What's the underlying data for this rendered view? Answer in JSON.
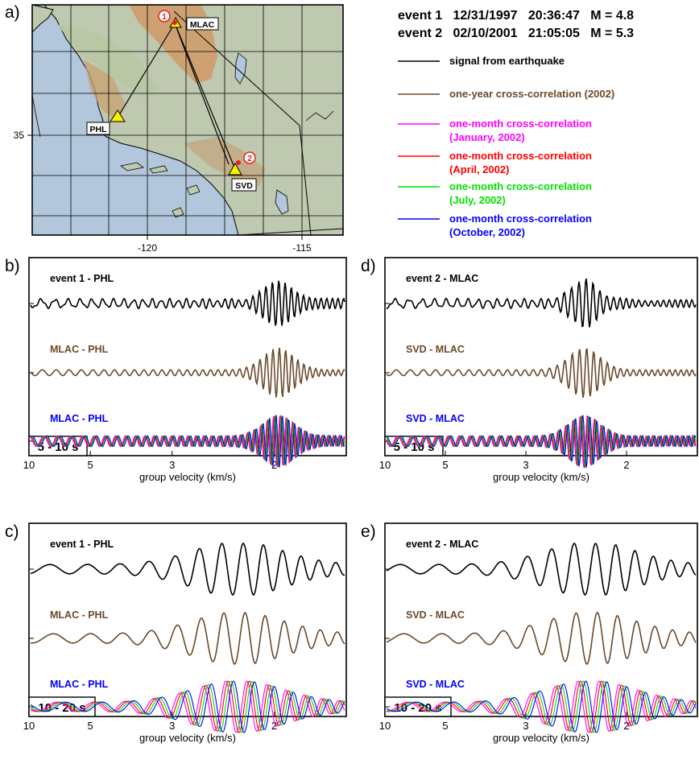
{
  "figure": {
    "map": {
      "panel_label": "a)",
      "x_ticks": [
        "-120",
        "-115"
      ],
      "y_ticks": [
        "35"
      ],
      "stations": [
        {
          "name": "MLAC",
          "kind": "station"
        },
        {
          "name": "PHL",
          "kind": "station"
        },
        {
          "name": "SVD",
          "kind": "station"
        }
      ],
      "events": [
        {
          "name": "1"
        },
        {
          "name": "2"
        }
      ],
      "colors": {
        "ocean": "#b2c7dc",
        "land": "#bfc9b0",
        "mountains": "#cf9a66",
        "station": "#f7f000",
        "event": "#e8211d"
      }
    },
    "events_info": [
      "event 1   12/31/1997   20:36:47   M = 4.8",
      "event 2   02/10/2001   21:05:05   M = 5.3"
    ],
    "legend": [
      {
        "lines": [
          "signal from earthquake"
        ],
        "color": "#000000"
      },
      {
        "lines": [
          "one-year cross-correlation (2002)"
        ],
        "color": "#6b4a2c"
      },
      {
        "lines": [
          "one-month cross-correlation",
          "(January, 2002)"
        ],
        "color": "#ff00ff"
      },
      {
        "lines": [
          "one-month cross-correlation",
          "(April, 2002)"
        ],
        "color": "#ff0000"
      },
      {
        "lines": [
          "one-month cross-correlation",
          "(July, 2002)"
        ],
        "color": "#00e000"
      },
      {
        "lines": [
          "one-month cross-correlation",
          "(October, 2002)"
        ],
        "color": "#0000ff"
      }
    ]
  },
  "chart_data": [
    {
      "type": "line",
      "panel_label": "b)",
      "period_band": "5 - 10 s",
      "xlabel": "group velocity (km/s)",
      "x_ticks": [
        "10",
        "5",
        "3",
        "2"
      ],
      "traces": [
        {
          "label": "event 1 - PHL",
          "label_color": "#000000",
          "series": [
            "signal from earthquake"
          ]
        },
        {
          "label": "MLAC - PHL",
          "label_color": "#6b4a2c",
          "series": [
            "one-year cross-correlation (2002)"
          ]
        },
        {
          "label": "MLAC - PHL",
          "label_color": "#0000ff",
          "series": [
            "January, 2002",
            "April, 2002",
            "July, 2002",
            "October, 2002"
          ]
        }
      ]
    },
    {
      "type": "line",
      "panel_label": "d)",
      "period_band": "5 - 10 s",
      "xlabel": "group velocity (km/s)",
      "x_ticks": [
        "10",
        "5",
        "3",
        "2"
      ],
      "traces": [
        {
          "label": "event 2 - MLAC",
          "label_color": "#000000",
          "series": [
            "signal from earthquake"
          ]
        },
        {
          "label": "SVD - MLAC",
          "label_color": "#6b4a2c",
          "series": [
            "one-year cross-correlation (2002)"
          ]
        },
        {
          "label": "SVD - MLAC",
          "label_color": "#0000ff",
          "series": [
            "January, 2002",
            "April, 2002",
            "July, 2002",
            "October, 2002"
          ]
        }
      ]
    },
    {
      "type": "line",
      "panel_label": "c)",
      "period_band": "10 - 20 s",
      "xlabel": "group velocity (km/s)",
      "x_ticks": [
        "10",
        "5",
        "3",
        "2"
      ],
      "traces": [
        {
          "label": "event 1 - PHL",
          "label_color": "#000000",
          "series": [
            "signal from earthquake"
          ]
        },
        {
          "label": "MLAC - PHL",
          "label_color": "#6b4a2c",
          "series": [
            "one-year cross-correlation (2002)"
          ]
        },
        {
          "label": "MLAC - PHL",
          "label_color": "#0000ff",
          "series": [
            "January, 2002",
            "April, 2002",
            "July, 2002",
            "October, 2002"
          ]
        }
      ]
    },
    {
      "type": "line",
      "panel_label": "e)",
      "period_band": "10 - 20 s",
      "xlabel": "group velocity (km/s)",
      "x_ticks": [
        "10",
        "5",
        "3",
        "2"
      ],
      "traces": [
        {
          "label": "event 2 - MLAC",
          "label_color": "#000000",
          "series": [
            "signal from earthquake"
          ]
        },
        {
          "label": "SVD - MLAC",
          "label_color": "#6b4a2c",
          "series": [
            "one-year cross-correlation (2002)"
          ]
        },
        {
          "label": "SVD - MLAC",
          "label_color": "#0000ff",
          "series": [
            "January, 2002",
            "April, 2002",
            "July, 2002",
            "October, 2002"
          ]
        }
      ]
    }
  ]
}
